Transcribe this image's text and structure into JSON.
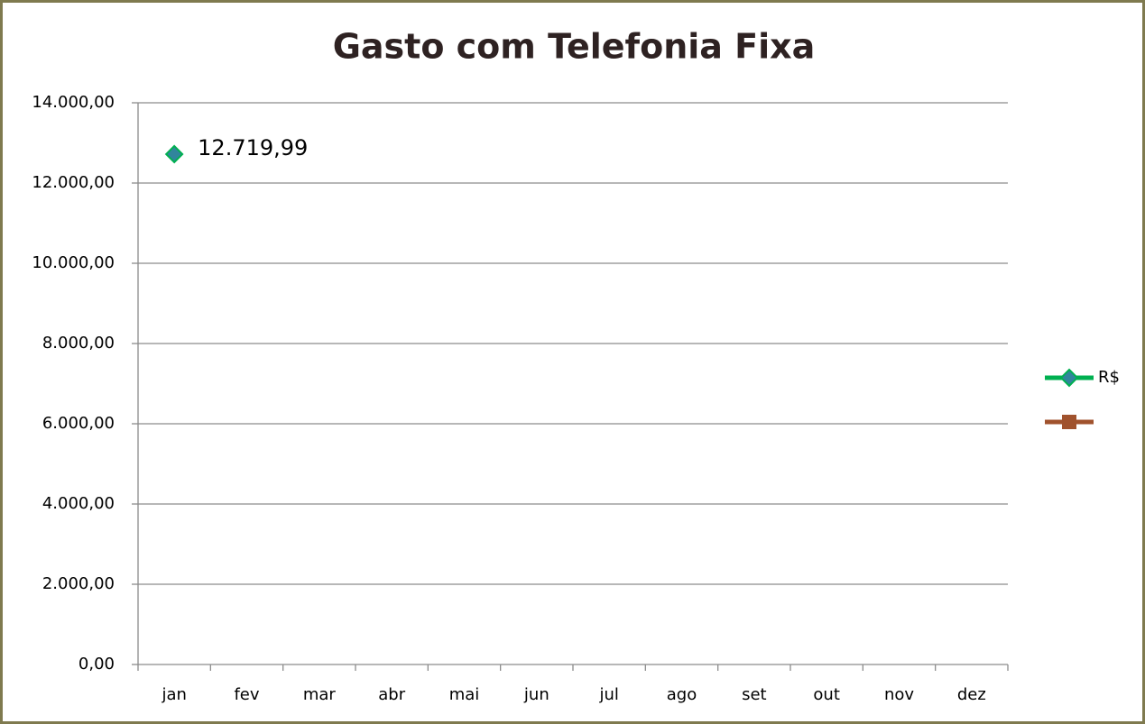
{
  "chart_data": {
    "type": "line",
    "title": "Gasto com Telefonia Fixa",
    "categories": [
      "jan",
      "fev",
      "mar",
      "abr",
      "mai",
      "jun",
      "jul",
      "ago",
      "set",
      "out",
      "nov",
      "dez"
    ],
    "series": [
      {
        "name": "R$",
        "color": "#00b050",
        "marker_color": "#31859c",
        "values": [
          12719.99,
          null,
          null,
          null,
          null,
          null,
          null,
          null,
          null,
          null,
          null,
          null
        ],
        "value_labels": [
          "12.719,99",
          null,
          null,
          null,
          null,
          null,
          null,
          null,
          null,
          null,
          null,
          null
        ]
      },
      {
        "color": "#a0522d",
        "values": [
          null,
          null,
          null,
          null,
          null,
          null,
          null,
          null,
          null,
          null,
          null,
          null
        ]
      }
    ],
    "ylim": [
      0,
      14000
    ],
    "yticks": [
      {
        "value": 0,
        "label": "0,00"
      },
      {
        "value": 2000,
        "label": "2.000,00"
      },
      {
        "value": 4000,
        "label": "4.000,00"
      },
      {
        "value": 6000,
        "label": "6.000,00"
      },
      {
        "value": 8000,
        "label": "8.000,00"
      },
      {
        "value": 10000,
        "label": "10.000,00"
      },
      {
        "value": 12000,
        "label": "12.000,00"
      },
      {
        "value": 14000,
        "label": "14.000,00"
      }
    ],
    "grid": true,
    "legend": "right"
  }
}
